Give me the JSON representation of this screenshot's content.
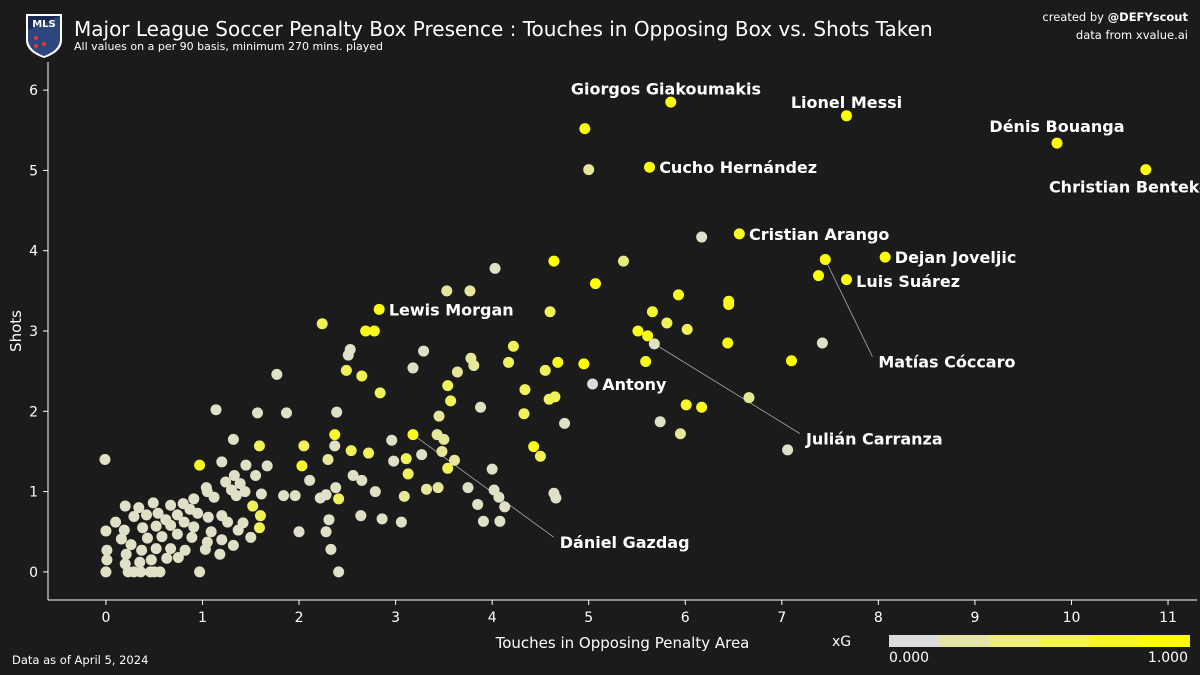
{
  "header": {
    "logo_text": "MLS",
    "title": "Major League Soccer Penalty Box Presence : Touches in Opposing Box vs. Shots Taken",
    "subtitle": "All values on a per 90 basis, minimum 270 mins. played"
  },
  "credit": {
    "created_prefix": "created by ",
    "created_handle": "@DEFYscout",
    "data_source": "data from xvalue.ai"
  },
  "footer": {
    "as_of": "Data as of April 5, 2024"
  },
  "colorbar": {
    "label": "xG",
    "min_label": "0.000",
    "max_label": "1.000",
    "colors": [
      "#dcdcdc",
      "#e6e4a8",
      "#eeee78",
      "#f4f44a",
      "#f8f820",
      "#ffff00"
    ]
  },
  "colors": {
    "background": "#1b1b1b",
    "axis": "#ffffff",
    "point_low": "#dcdcdc",
    "point_high": "#ffff00",
    "connector": "#aaaaaa"
  },
  "chart_data": {
    "type": "scatter",
    "xlabel": "Touches in Opposing Penalty Area",
    "ylabel": "Shots",
    "xlim": [
      -0.6,
      11.3
    ],
    "ylim": [
      -0.35,
      6.35
    ],
    "xticks": [
      "0",
      "1",
      "2",
      "3",
      "4",
      "5",
      "6",
      "7",
      "8",
      "9",
      "10",
      "11"
    ],
    "yticks": [
      "0",
      "1",
      "2",
      "3",
      "4",
      "5",
      "6"
    ],
    "grid": false,
    "color_scale": "xG",
    "labeled_points": [
      {
        "name": "Giorgos Giakoumakis",
        "x": 5.85,
        "y": 5.85,
        "xg": 1.0,
        "lx": 5.8,
        "ly": 6.02
      },
      {
        "name": "Lionel Messi",
        "x": 7.67,
        "y": 5.68,
        "xg": 1.0,
        "lx": 7.67,
        "ly": 5.85
      },
      {
        "name": "Dénis Bouanga",
        "x": 9.85,
        "y": 5.34,
        "xg": 1.0,
        "lx": 9.85,
        "ly": 5.55
      },
      {
        "name": "Christian Benteke",
        "x": 10.77,
        "y": 5.01,
        "xg": 1.0,
        "lx": 10.6,
        "ly": 4.8
      },
      {
        "name": "Cucho Hernández",
        "x": 5.63,
        "y": 5.04,
        "xg": 0.95,
        "lx": 5.73,
        "ly": 5.04,
        "anchor": "start"
      },
      {
        "name": "Cristian Arango",
        "x": 6.56,
        "y": 4.21,
        "xg": 0.85,
        "lx": 6.66,
        "ly": 4.21,
        "anchor": "start"
      },
      {
        "name": "Dejan Joveljic",
        "x": 8.07,
        "y": 3.92,
        "xg": 1.0,
        "lx": 8.17,
        "ly": 3.92,
        "anchor": "start"
      },
      {
        "name": "Luis Suárez",
        "x": 7.67,
        "y": 3.64,
        "xg": 0.95,
        "lx": 7.77,
        "ly": 3.62,
        "anchor": "start"
      },
      {
        "name": "Matías Cóccaro",
        "x": 7.45,
        "y": 3.89,
        "xg": 1.0,
        "lx": 8.0,
        "ly": 2.62,
        "anchor": "start",
        "connector": true
      },
      {
        "name": "Lewis Morgan",
        "x": 2.83,
        "y": 3.27,
        "xg": 0.9,
        "lx": 2.93,
        "ly": 3.27,
        "anchor": "start"
      },
      {
        "name": "Antony",
        "x": 5.04,
        "y": 2.34,
        "xg": 0.0,
        "lx": 5.14,
        "ly": 2.34,
        "anchor": "start"
      },
      {
        "name": "Julián Carranza",
        "x": 5.68,
        "y": 2.84,
        "xg": 0.1,
        "lx": 7.25,
        "ly": 1.66,
        "anchor": "start",
        "connector": true
      },
      {
        "name": "Dániel Gazdag",
        "x": 3.18,
        "y": 1.71,
        "xg": 0.9,
        "lx": 4.7,
        "ly": 0.37,
        "anchor": "start",
        "connector": true
      }
    ],
    "points": [
      [
        4.96,
        5.52,
        1.0
      ],
      [
        5.0,
        5.01,
        0.3
      ],
      [
        6.17,
        4.17,
        0.1
      ],
      [
        4.64,
        3.87,
        1.0
      ],
      [
        5.36,
        3.87,
        0.4
      ],
      [
        4.03,
        3.78,
        0.1
      ],
      [
        3.53,
        3.5,
        0.3
      ],
      [
        3.77,
        3.5,
        0.3
      ],
      [
        5.07,
        3.59,
        1.0
      ],
      [
        5.93,
        3.45,
        0.9
      ],
      [
        6.45,
        3.37,
        0.95
      ],
      [
        6.45,
        3.33,
        0.95
      ],
      [
        7.38,
        3.69,
        0.95
      ],
      [
        4.6,
        3.24,
        0.6
      ],
      [
        5.66,
        3.24,
        0.8
      ],
      [
        5.81,
        3.1,
        0.6
      ],
      [
        2.24,
        3.09,
        0.6
      ],
      [
        2.69,
        3.0,
        0.9
      ],
      [
        2.78,
        3.0,
        0.9
      ],
      [
        5.51,
        3.0,
        0.9
      ],
      [
        5.61,
        2.94,
        0.9
      ],
      [
        6.02,
        3.02,
        0.6
      ],
      [
        6.44,
        2.85,
        0.95
      ],
      [
        7.42,
        2.85,
        0.1
      ],
      [
        2.53,
        2.77,
        0.1
      ],
      [
        2.51,
        2.7,
        0.1
      ],
      [
        3.29,
        2.75,
        0.1
      ],
      [
        4.22,
        2.81,
        0.6
      ],
      [
        3.78,
        2.66,
        0.3
      ],
      [
        3.81,
        2.57,
        0.3
      ],
      [
        4.17,
        2.61,
        0.6
      ],
      [
        4.68,
        2.61,
        0.9
      ],
      [
        4.95,
        2.59,
        1.0
      ],
      [
        5.59,
        2.62,
        0.9
      ],
      [
        7.1,
        2.63,
        1.0
      ],
      [
        2.49,
        2.51,
        0.6
      ],
      [
        2.65,
        2.44,
        0.6
      ],
      [
        3.18,
        2.54,
        0.1
      ],
      [
        3.64,
        2.49,
        0.3
      ],
      [
        1.77,
        2.46,
        0.1
      ],
      [
        4.55,
        2.51,
        0.6
      ],
      [
        3.54,
        2.32,
        0.6
      ],
      [
        2.84,
        2.23,
        0.6
      ],
      [
        3.57,
        2.13,
        0.6
      ],
      [
        4.34,
        2.27,
        0.6
      ],
      [
        4.65,
        2.18,
        0.6
      ],
      [
        4.59,
        2.15,
        0.6
      ],
      [
        6.66,
        2.17,
        0.3
      ],
      [
        1.14,
        2.02,
        0.1
      ],
      [
        1.57,
        1.98,
        0.1
      ],
      [
        1.87,
        1.98,
        0.1
      ],
      [
        2.39,
        1.99,
        0.1
      ],
      [
        3.45,
        1.94,
        0.3
      ],
      [
        3.88,
        2.05,
        0.1
      ],
      [
        4.33,
        1.97,
        0.6
      ],
      [
        6.01,
        2.08,
        0.8
      ],
      [
        6.17,
        2.05,
        0.9
      ],
      [
        5.74,
        1.87,
        0.1
      ],
      [
        4.75,
        1.85,
        0.1
      ],
      [
        5.95,
        1.72,
        0.3
      ],
      [
        1.32,
        1.65,
        0.1
      ],
      [
        2.37,
        1.71,
        0.8
      ],
      [
        2.96,
        1.64,
        0.1
      ],
      [
        3.43,
        1.71,
        0.3
      ],
      [
        3.5,
        1.65,
        0.3
      ],
      [
        4.43,
        1.56,
        0.9
      ],
      [
        4.5,
        1.44,
        0.6
      ],
      [
        1.59,
        1.57,
        0.6
      ],
      [
        2.05,
        1.57,
        0.6
      ],
      [
        2.37,
        1.57,
        0.1
      ],
      [
        2.54,
        1.51,
        0.6
      ],
      [
        2.72,
        1.48,
        0.6
      ],
      [
        2.98,
        1.38,
        0.1
      ],
      [
        3.11,
        1.41,
        0.6
      ],
      [
        3.27,
        1.46,
        0.1
      ],
      [
        3.48,
        1.5,
        0.3
      ],
      [
        3.61,
        1.39,
        0.3
      ],
      [
        0.97,
        1.33,
        0.8
      ],
      [
        1.2,
        1.37,
        0.1
      ],
      [
        1.45,
        1.33,
        0.1
      ],
      [
        1.67,
        1.32,
        0.1
      ],
      [
        2.03,
        1.32,
        0.8
      ],
      [
        2.3,
        1.4,
        0.3
      ],
      [
        2.56,
        1.2,
        0.1
      ],
      [
        3.13,
        1.22,
        0.6
      ],
      [
        3.54,
        1.29,
        0.6
      ],
      [
        4.0,
        1.28,
        0.1
      ],
      [
        -0.01,
        1.4,
        0.1
      ],
      [
        1.33,
        1.2,
        0.1
      ],
      [
        1.55,
        1.2,
        0.1
      ],
      [
        2.11,
        1.14,
        0.1
      ],
      [
        2.38,
        1.05,
        0.1
      ],
      [
        2.65,
        1.14,
        0.1
      ],
      [
        2.79,
        1.0,
        0.1
      ],
      [
        3.32,
        1.03,
        0.3
      ],
      [
        3.44,
        1.05,
        0.3
      ],
      [
        3.75,
        1.05,
        0.1
      ],
      [
        4.02,
        1.02,
        0.1
      ],
      [
        1.24,
        1.12,
        0.1
      ],
      [
        1.04,
        1.05,
        0.1
      ],
      [
        1.3,
        1.02,
        0.1
      ],
      [
        1.39,
        1.1,
        0.1
      ],
      [
        1.44,
        1.0,
        0.1
      ],
      [
        1.61,
        0.97,
        0.1
      ],
      [
        1.84,
        0.95,
        0.1
      ],
      [
        1.96,
        0.95,
        0.1
      ],
      [
        2.28,
        0.96,
        0.1
      ],
      [
        4.64,
        0.98,
        0.1
      ],
      [
        4.66,
        0.92,
        0.1
      ],
      [
        3.09,
        0.94,
        0.3
      ],
      [
        4.07,
        0.93,
        0.1
      ],
      [
        4.13,
        0.81,
        0.1
      ],
      [
        3.85,
        0.84,
        0.1
      ],
      [
        2.22,
        0.92,
        0.1
      ],
      [
        2.41,
        0.91,
        0.6
      ],
      [
        2.64,
        0.7,
        0.1
      ],
      [
        2.86,
        0.66,
        0.1
      ],
      [
        3.06,
        0.62,
        0.1
      ],
      [
        3.91,
        0.63,
        0.1
      ],
      [
        4.08,
        0.63,
        0.1
      ],
      [
        2.31,
        0.65,
        0.1
      ],
      [
        2.0,
        0.5,
        0.1
      ],
      [
        2.28,
        0.5,
        0.1
      ],
      [
        2.33,
        0.28,
        0.1
      ],
      [
        2.41,
        0.0,
        0.1
      ],
      [
        0.2,
        0.82,
        0.1
      ],
      [
        0.34,
        0.8,
        0.1
      ],
      [
        0.49,
        0.86,
        0.1
      ],
      [
        0.67,
        0.83,
        0.1
      ],
      [
        0.8,
        0.85,
        0.1
      ],
      [
        0.91,
        0.91,
        0.1
      ],
      [
        1.05,
        1.0,
        0.1
      ],
      [
        1.12,
        0.93,
        0.1
      ],
      [
        1.35,
        0.95,
        0.1
      ],
      [
        1.52,
        0.82,
        0.6
      ],
      [
        1.6,
        0.7,
        0.6
      ],
      [
        1.59,
        0.55,
        0.6
      ],
      [
        0.29,
        0.69,
        0.1
      ],
      [
        0.42,
        0.71,
        0.1
      ],
      [
        0.54,
        0.73,
        0.1
      ],
      [
        0.62,
        0.65,
        0.1
      ],
      [
        0.74,
        0.71,
        0.1
      ],
      [
        0.87,
        0.78,
        0.1
      ],
      [
        0.95,
        0.73,
        0.1
      ],
      [
        1.06,
        0.68,
        0.1
      ],
      [
        1.2,
        0.7,
        0.1
      ],
      [
        1.26,
        0.62,
        0.1
      ],
      [
        1.42,
        0.61,
        0.1
      ],
      [
        0.1,
        0.62,
        0.1
      ],
      [
        0.19,
        0.52,
        0.1
      ],
      [
        0.38,
        0.55,
        0.1
      ],
      [
        0.52,
        0.57,
        0.1
      ],
      [
        0.67,
        0.58,
        0.1
      ],
      [
        0.81,
        0.62,
        0.1
      ],
      [
        0.91,
        0.56,
        0.1
      ],
      [
        1.09,
        0.5,
        0.1
      ],
      [
        1.37,
        0.52,
        0.1
      ],
      [
        0.0,
        0.51,
        0.1
      ],
      [
        0.16,
        0.41,
        0.1
      ],
      [
        0.26,
        0.34,
        0.1
      ],
      [
        0.43,
        0.42,
        0.1
      ],
      [
        0.58,
        0.44,
        0.1
      ],
      [
        0.74,
        0.47,
        0.1
      ],
      [
        0.89,
        0.43,
        0.1
      ],
      [
        1.05,
        0.37,
        0.1
      ],
      [
        1.2,
        0.4,
        0.1
      ],
      [
        1.32,
        0.33,
        0.1
      ],
      [
        1.5,
        0.43,
        0.1
      ],
      [
        0.01,
        0.27,
        0.1
      ],
      [
        0.21,
        0.22,
        0.1
      ],
      [
        0.37,
        0.27,
        0.1
      ],
      [
        0.52,
        0.29,
        0.1
      ],
      [
        0.67,
        0.29,
        0.1
      ],
      [
        0.82,
        0.27,
        0.1
      ],
      [
        1.03,
        0.28,
        0.1
      ],
      [
        1.18,
        0.22,
        0.1
      ],
      [
        0.01,
        0.15,
        0.1
      ],
      [
        0.2,
        0.1,
        0.1
      ],
      [
        0.35,
        0.12,
        0.1
      ],
      [
        0.47,
        0.15,
        0.1
      ],
      [
        0.63,
        0.17,
        0.1
      ],
      [
        0.75,
        0.18,
        0.1
      ],
      [
        0.0,
        0.0,
        0.1
      ],
      [
        0.23,
        0.0,
        0.1
      ],
      [
        0.29,
        0.0,
        0.1
      ],
      [
        0.36,
        0.0,
        0.1
      ],
      [
        0.46,
        0.0,
        0.1
      ],
      [
        0.5,
        0.0,
        0.1
      ],
      [
        0.56,
        0.0,
        0.1
      ],
      [
        0.97,
        0.0,
        0.1
      ],
      [
        7.06,
        1.52,
        0.1
      ]
    ]
  }
}
